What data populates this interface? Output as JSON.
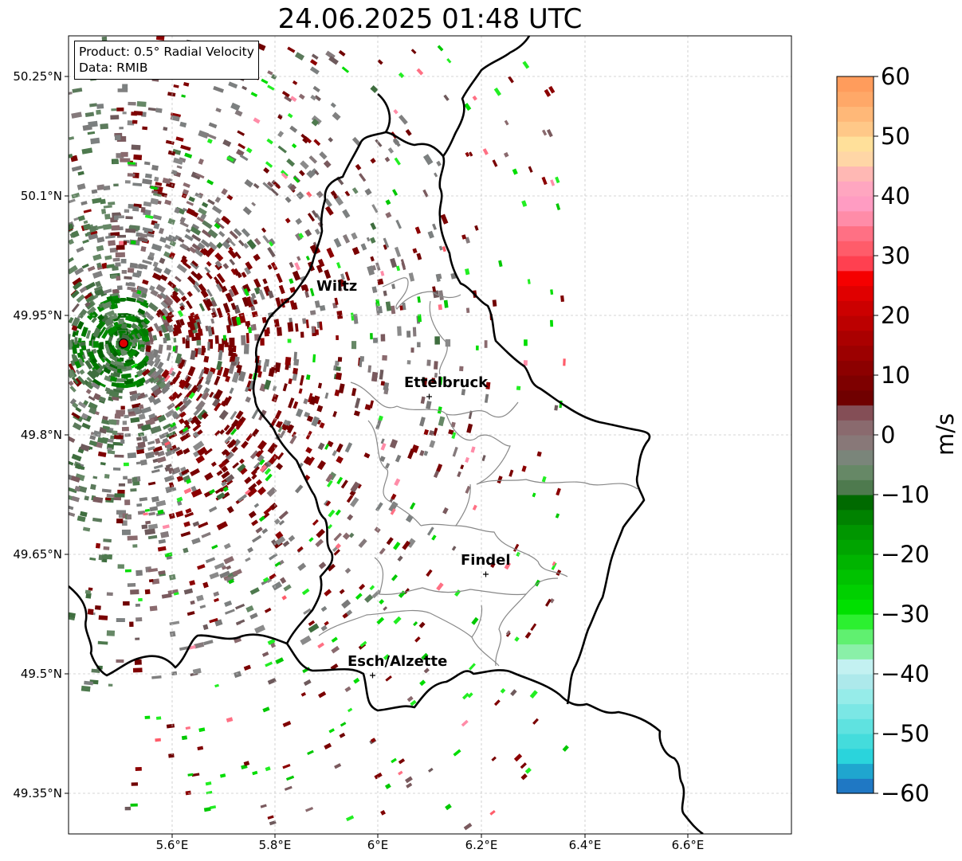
{
  "title": "24.06.2025 01:48 UTC",
  "info_box": {
    "product": "Product: 0.5° Radial Velocity",
    "data": "Data: RMIB"
  },
  "lat_ticks": [
    "50.25°N",
    "50.1°N",
    "49.95°N",
    "49.8°N",
    "49.65°N",
    "49.5°N",
    "49.35°N"
  ],
  "lon_ticks": [
    "5.6°E",
    "5.8°E",
    "6°E",
    "6.2°E",
    "6.4°E",
    "6.6°E"
  ],
  "cities": [
    {
      "name": "Wiltz"
    },
    {
      "name": "Ettelbruck"
    },
    {
      "name": "Findel"
    },
    {
      "name": "Esch/Alzette"
    }
  ],
  "colorbar": {
    "label": "m/s",
    "ticks": [
      "60",
      "50",
      "40",
      "30",
      "20",
      "10",
      "0",
      "−10",
      "−20",
      "−30",
      "−40",
      "−50",
      "−60"
    ],
    "range": [
      -60,
      60
    ],
    "colors": [
      "#1f78c4",
      "#1fa6cf",
      "#2ad4dc",
      "#44dcdc",
      "#5fe2e0",
      "#7be7e5",
      "#96ece9",
      "#ade9eb",
      "#c3f1f1",
      "#8af0a8",
      "#60f070",
      "#2cf030",
      "#00e000",
      "#00d000",
      "#00c200",
      "#00b400",
      "#00a400",
      "#009600",
      "#008200",
      "#006a00",
      "#4e7a4e",
      "#668866",
      "#7a857a",
      "#887878",
      "#8a6a6e",
      "#844e56",
      "#700000",
      "#7e0000",
      "#8c0000",
      "#9c0000",
      "#aa0000",
      "#bc0000",
      "#cc0000",
      "#e00000",
      "#f50000",
      "#ff4050",
      "#ff5c6a",
      "#ff7084",
      "#ff8ca8",
      "#ff9cc2",
      "#ffa6c0",
      "#ffb8b4",
      "#ffd6a6",
      "#ffe09a",
      "#ffc888",
      "#ffb878",
      "#ffa868",
      "#ff9c5c"
    ]
  },
  "radar_site": {
    "lon": 5.505,
    "lat": 49.914
  }
}
